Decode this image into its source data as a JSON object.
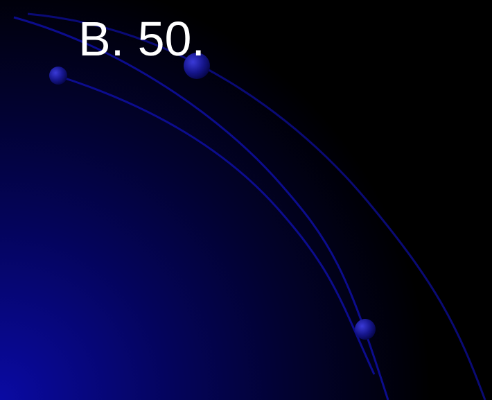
{
  "slide": {
    "title": "B. 50.",
    "colors": {
      "background": "#000000",
      "gradient_corner": "#0a0aa3",
      "arc": "#0d0d9a",
      "bead": "#16168c",
      "title_text": "#ffffff"
    }
  }
}
